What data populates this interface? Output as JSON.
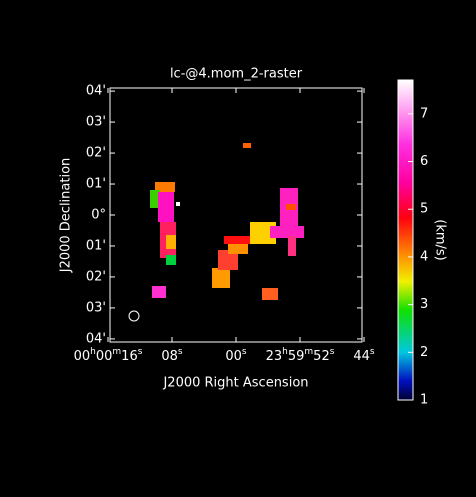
{
  "chart_data": {
    "type": "image",
    "title": "lc-@4.mom_2-raster",
    "x_label": "J2000 Right Ascension",
    "y_label": "J2000 Declination",
    "xlim": [
      15.75,
      -15.75
    ],
    "ylim": [
      -4.1,
      4.1
    ],
    "xticks": [
      {
        "value": 16,
        "label": "00h00m16s"
      },
      {
        "value": 8,
        "label": "08s"
      },
      {
        "value": 0,
        "label": "00s"
      },
      {
        "value": -8,
        "label": "23h59m52s"
      },
      {
        "value": -16,
        "label": "44s"
      }
    ],
    "yticks": [
      {
        "value": 4,
        "label": "04'"
      },
      {
        "value": 3,
        "label": "03'"
      },
      {
        "value": 2,
        "label": "02'"
      },
      {
        "value": 1,
        "label": "01'"
      },
      {
        "value": 0,
        "label": "0°"
      },
      {
        "value": -1,
        "label": "01'"
      },
      {
        "value": -2,
        "label": "02'"
      },
      {
        "value": -3,
        "label": "03'"
      },
      {
        "value": -4,
        "label": "04'"
      }
    ],
    "colorbar": {
      "label": "(km/s)",
      "lim": [
        1,
        7.71
      ],
      "ticks": [
        1,
        2,
        3,
        4,
        5,
        6,
        7
      ]
    }
  }
}
